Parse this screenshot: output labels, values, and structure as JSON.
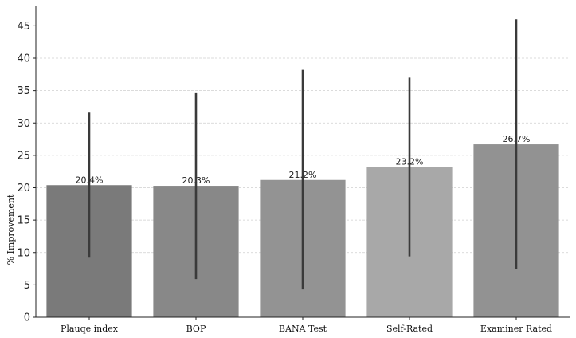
{
  "chart_data": {
    "type": "bar",
    "title": "",
    "xlabel": "",
    "ylabel": "% Improvement",
    "ylim": [
      0,
      48
    ],
    "yticks": [
      0,
      5,
      10,
      15,
      20,
      25,
      30,
      35,
      40,
      45
    ],
    "grid": true,
    "categories": [
      "Plauqe index",
      "BOP",
      "BANA Test",
      "Self-Rated",
      "Examiner Rated"
    ],
    "values": [
      20.4,
      20.3,
      21.2,
      23.2,
      26.7
    ],
    "data_labels": [
      "20.4%",
      "20.3%",
      "21.2%",
      "23.2%",
      "26.7%"
    ],
    "error_low": [
      9.2,
      5.9,
      4.3,
      9.4,
      7.4
    ],
    "error_high": [
      31.6,
      34.6,
      38.2,
      37.0,
      46.0
    ],
    "bar_colors": [
      "#7a7a7a",
      "#888888",
      "#939393",
      "#a8a8a8",
      "#929292"
    ]
  }
}
